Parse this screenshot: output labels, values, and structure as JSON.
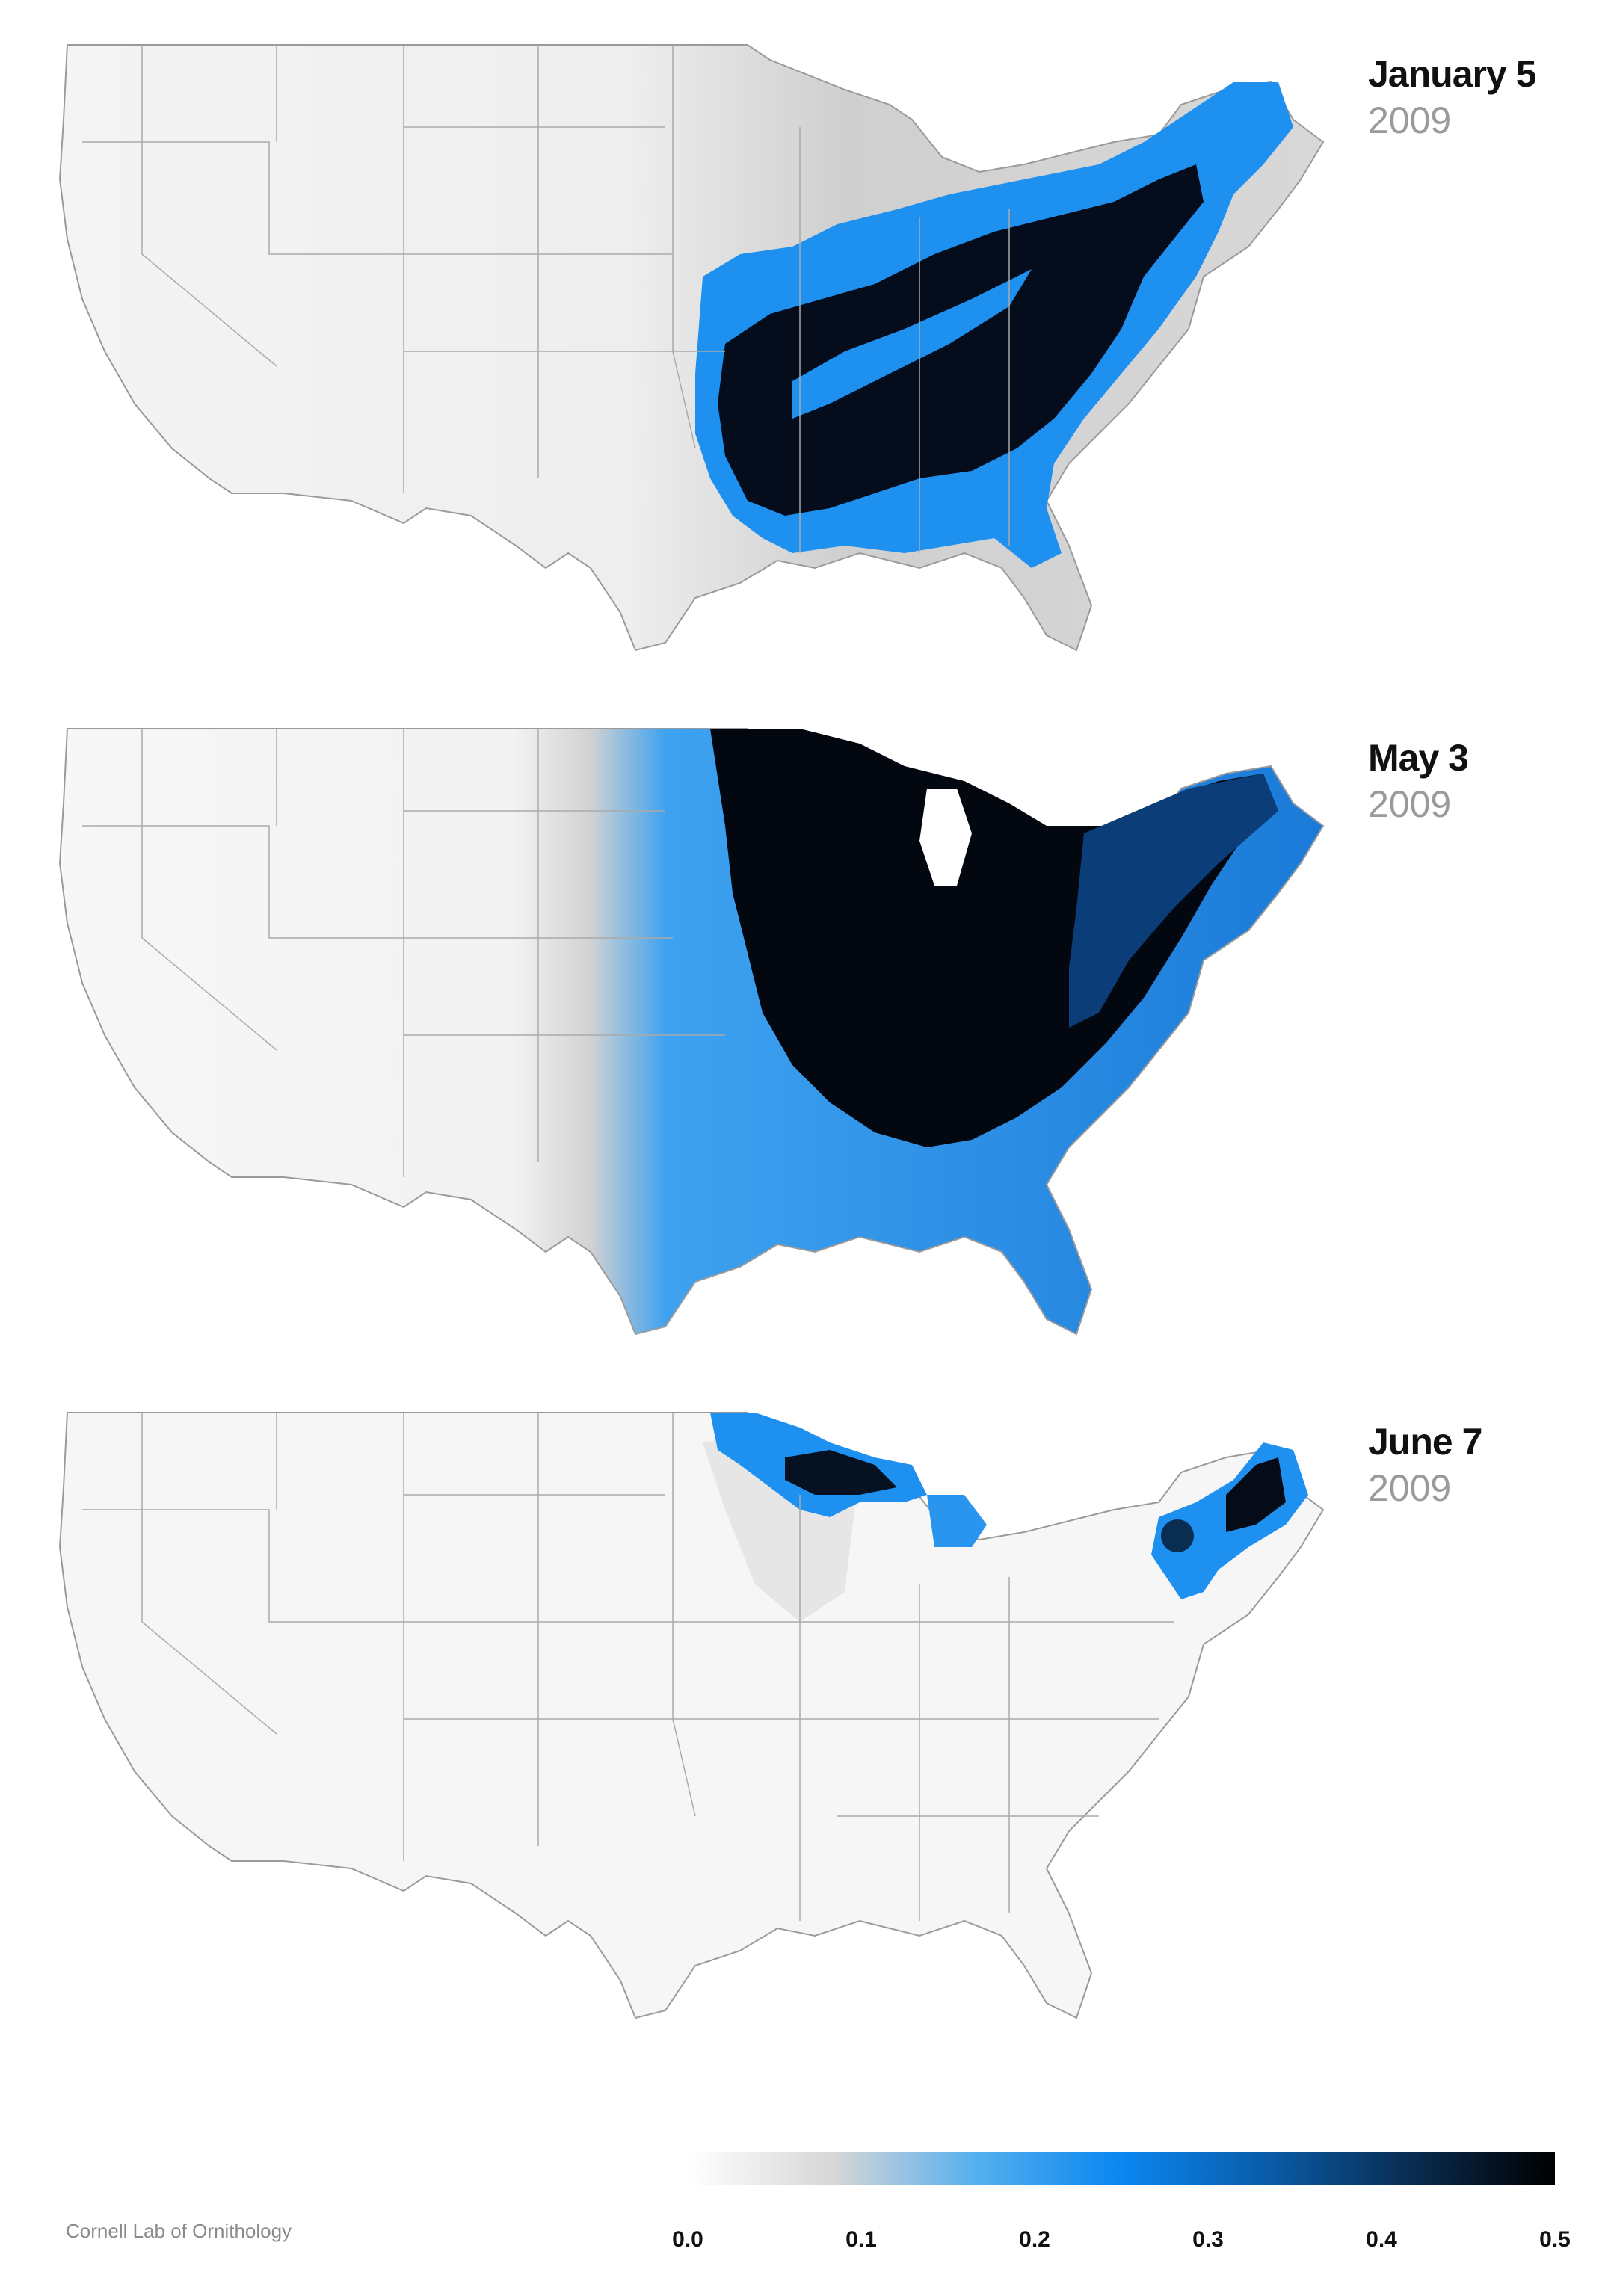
{
  "panels": [
    {
      "date": "January 5",
      "year": "2009"
    },
    {
      "date": "May 3",
      "year": "2009"
    },
    {
      "date": "June 7",
      "year": "2009"
    }
  ],
  "legend": {
    "ticks": [
      "0.0",
      "0.1",
      "0.2",
      "0.3",
      "0.4",
      "0.5"
    ],
    "range": [
      0,
      0.5
    ],
    "colors": [
      "#ffffff",
      "#d6d6d6",
      "#56b0ee",
      "#0a86f0",
      "#0a5ca8",
      "#0a2d52",
      "#000000"
    ]
  },
  "credit": "Cornell Lab of Ornithology",
  "colors": {
    "state_border": "#9a9a9a",
    "land": "#f4f4f4",
    "low": "#dcdcdc",
    "mid_blue": "#1e90f0",
    "dark_blue": "#0a3a6e",
    "black": "#050505"
  }
}
